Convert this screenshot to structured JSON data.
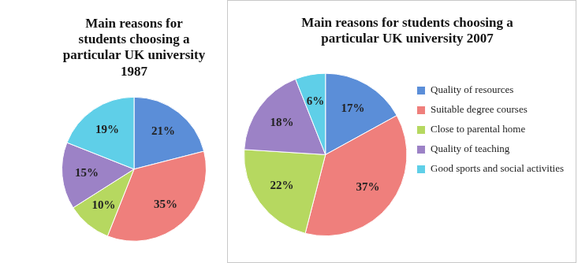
{
  "chart_data": [
    {
      "type": "pie",
      "title": "Main reasons for students choosing a particular UK university 1987",
      "categories": [
        "Quality of resources",
        "Suitable degree courses",
        "Close to parental home",
        "Quality of teaching",
        "Good sports and social activities"
      ],
      "values": [
        21,
        35,
        10,
        15,
        19
      ],
      "value_labels": [
        "21%",
        "35%",
        "10%",
        "15%",
        "19%"
      ],
      "colors": [
        "#5b8ed8",
        "#ef7f7c",
        "#b6d860",
        "#9c82c6",
        "#5fcfe8"
      ],
      "data_labels": true
    },
    {
      "type": "pie",
      "title": "Main reasons for students choosing a particular UK university 2007",
      "categories": [
        "Quality of resources",
        "Suitable degree courses",
        "Close to parental home",
        "Quality of teaching",
        "Good sports and social activities"
      ],
      "values": [
        17,
        37,
        22,
        18,
        6
      ],
      "value_labels": [
        "17%",
        "37%",
        "22%",
        "18%",
        "6%"
      ],
      "colors": [
        "#5b8ed8",
        "#ef7f7c",
        "#b6d860",
        "#9c82c6",
        "#5fcfe8"
      ],
      "data_labels": true,
      "legend": "right"
    }
  ]
}
